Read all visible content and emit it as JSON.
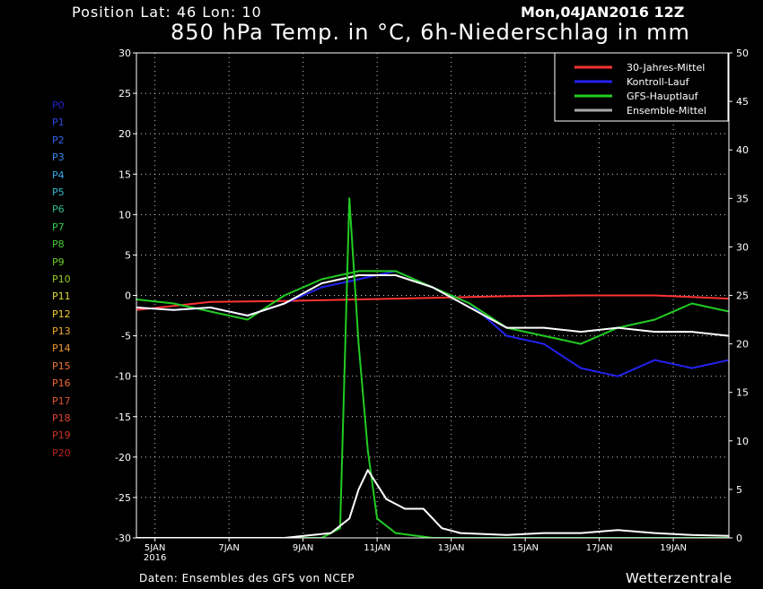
{
  "header": {
    "position": "Position  Lat: 46 Lon: 10",
    "date": "Mon,04JAN2016 12Z",
    "title": "850 hPa Temp. in °C, 6h-Niederschlag in mm"
  },
  "footer": {
    "left": "Daten: Ensembles des GFS von NCEP",
    "right": "Wetterzentrale"
  },
  "members": [
    {
      "label": "P0",
      "color": "#2222cc"
    },
    {
      "label": "P1",
      "color": "#2a44dd"
    },
    {
      "label": "P2",
      "color": "#3366ee"
    },
    {
      "label": "P3",
      "color": "#3388ee"
    },
    {
      "label": "P4",
      "color": "#33aaee"
    },
    {
      "label": "P5",
      "color": "#33bbcc"
    },
    {
      "label": "P6",
      "color": "#33bb88"
    },
    {
      "label": "P7",
      "color": "#33cc55"
    },
    {
      "label": "P8",
      "color": "#44cc33"
    },
    {
      "label": "P9",
      "color": "#66cc22"
    },
    {
      "label": "P10",
      "color": "#99cc22"
    },
    {
      "label": "P11",
      "color": "#dddd33"
    },
    {
      "label": "P12",
      "color": "#eecc33"
    },
    {
      "label": "P13",
      "color": "#eeaa33"
    },
    {
      "label": "P14",
      "color": "#ee9933"
    },
    {
      "label": "P15",
      "color": "#ee7733"
    },
    {
      "label": "P16",
      "color": "#ee6633"
    },
    {
      "label": "P17",
      "color": "#dd5533"
    },
    {
      "label": "P18",
      "color": "#dd4433"
    },
    {
      "label": "P19",
      "color": "#cc3322"
    },
    {
      "label": "P20",
      "color": "#bb2222"
    }
  ],
  "chart_data": {
    "type": "line",
    "x_start": "2016-01-04T12:00",
    "x_end": "2016-01-20T12:00",
    "ylim_left": [
      -30,
      30
    ],
    "ylim_right": [
      0,
      50
    ],
    "left_ticks": [
      "30",
      "25",
      "20",
      "15",
      "10",
      "5",
      "0",
      "-5",
      "-10",
      "-15",
      "-20",
      "-25",
      "-30"
    ],
    "right_ticks": [
      "50",
      "45",
      "40",
      "35",
      "30",
      "25",
      "20",
      "15",
      "10",
      "5",
      "0"
    ],
    "x_ticks": [
      {
        "label": "5JAN",
        "sub": "2016",
        "date": "2016-01-05"
      },
      {
        "label": "7JAN",
        "sub": "",
        "date": "2016-01-07"
      },
      {
        "label": "9JAN",
        "sub": "",
        "date": "2016-01-09"
      },
      {
        "label": "11JAN",
        "sub": "",
        "date": "2016-01-11"
      },
      {
        "label": "13JAN",
        "sub": "",
        "date": "2016-01-13"
      },
      {
        "label": "15JAN",
        "sub": "",
        "date": "2016-01-15"
      },
      {
        "label": "17JAN",
        "sub": "",
        "date": "2016-01-17"
      },
      {
        "label": "19JAN",
        "sub": "",
        "date": "2016-01-19"
      }
    ],
    "grid": true,
    "legend_position": "top-right",
    "legend": [
      {
        "name": "30-Jahres-Mittel",
        "color": "#ff3333"
      },
      {
        "name": "Kontroll-Lauf",
        "color": "#2222ee"
      },
      {
        "name": "GFS-Hauptlauf",
        "color": "#22cc22"
      },
      {
        "name": "Ensemble-Mittel",
        "color": "#aaaaaa"
      }
    ],
    "temperature": {
      "climatology": {
        "color": "#ff3333",
        "x": [
          "2016-01-04T12:00",
          "2016-01-06T12:00",
          "2016-01-08T12:00",
          "2016-01-10T12:00",
          "2016-01-12T12:00",
          "2016-01-14T12:00",
          "2016-01-16T12:00",
          "2016-01-18T12:00",
          "2016-01-20T12:00"
        ],
        "y": [
          -1.8,
          -0.8,
          -0.7,
          -0.5,
          -0.3,
          -0.1,
          0,
          0,
          -0.4
        ]
      },
      "control": {
        "color": "#2222ee",
        "x": [
          "2016-01-04T12:00",
          "2016-01-05T12:00",
          "2016-01-06T12:00",
          "2016-01-07T12:00",
          "2016-01-08T12:00",
          "2016-01-09T12:00",
          "2016-01-10T12:00",
          "2016-01-11T12:00",
          "2016-01-12T12:00",
          "2016-01-13T12:00",
          "2016-01-14T12:00",
          "2016-01-15T12:00",
          "2016-01-16T12:00",
          "2016-01-17T12:00",
          "2016-01-18T12:00",
          "2016-01-19T12:00",
          "2016-01-20T12:00"
        ],
        "y": [
          -1.5,
          -1.8,
          -1.5,
          -2.5,
          -1,
          1,
          2,
          3,
          1,
          -1,
          -5,
          -6,
          -9,
          -10,
          -8,
          -9,
          -8
        ]
      },
      "gfs_main": {
        "color": "#22cc22",
        "x": [
          "2016-01-04T12:00",
          "2016-01-05T12:00",
          "2016-01-06T12:00",
          "2016-01-07T12:00",
          "2016-01-08T12:00",
          "2016-01-09T12:00",
          "2016-01-10T12:00",
          "2016-01-11T12:00",
          "2016-01-12T12:00",
          "2016-01-13T12:00",
          "2016-01-14T12:00",
          "2016-01-15T12:00",
          "2016-01-16T12:00",
          "2016-01-17T12:00",
          "2016-01-18T12:00",
          "2016-01-19T12:00",
          "2016-01-20T12:00"
        ],
        "y": [
          -0.5,
          -1,
          -2,
          -3,
          0,
          2,
          3,
          3,
          1,
          -1,
          -4,
          -5,
          -6,
          -4,
          -3,
          -1,
          -2
        ]
      },
      "ensemble_mean": {
        "color": "#ffffff",
        "x": [
          "2016-01-04T12:00",
          "2016-01-05T12:00",
          "2016-01-06T12:00",
          "2016-01-07T12:00",
          "2016-01-08T12:00",
          "2016-01-09T12:00",
          "2016-01-10T12:00",
          "2016-01-11T12:00",
          "2016-01-12T12:00",
          "2016-01-13T12:00",
          "2016-01-14T12:00",
          "2016-01-15T12:00",
          "2016-01-16T12:00",
          "2016-01-17T12:00",
          "2016-01-18T12:00",
          "2016-01-19T12:00",
          "2016-01-20T12:00"
        ],
        "y": [
          -1.5,
          -1.8,
          -1.5,
          -2.5,
          -1,
          1.5,
          2.5,
          2.5,
          1,
          -1.5,
          -4,
          -4,
          -4.5,
          -4,
          -4.5,
          -4.5,
          -5
        ]
      }
    },
    "precipitation": {
      "ensemble_mean": {
        "color": "#ffffff",
        "x": [
          "2016-01-04T12:00",
          "2016-01-08T12:00",
          "2016-01-09T18:00",
          "2016-01-10T06:00",
          "2016-01-10T12:00",
          "2016-01-10T18:00",
          "2016-01-11T06:00",
          "2016-01-11T18:00",
          "2016-01-12T06:00",
          "2016-01-12T18:00",
          "2016-01-13T06:00",
          "2016-01-14T12:00",
          "2016-01-15T12:00",
          "2016-01-16T12:00",
          "2016-01-17T12:00",
          "2016-01-18T12:00",
          "2016-01-19T12:00",
          "2016-01-20T12:00"
        ],
        "y": [
          0,
          0,
          0.5,
          2,
          5,
          7,
          4,
          3,
          3,
          1,
          0.5,
          0.3,
          0.5,
          0.5,
          0.8,
          0.5,
          0.3,
          0.2
        ]
      },
      "gfs_main": {
        "color": "#22cc22",
        "x": [
          "2016-01-04T12:00",
          "2016-01-09T12:00",
          "2016-01-10T00:00",
          "2016-01-10T06:00",
          "2016-01-10T12:00",
          "2016-01-10T18:00",
          "2016-01-11T00:00",
          "2016-01-11T12:00",
          "2016-01-12T12:00",
          "2016-01-20T12:00"
        ],
        "y": [
          0,
          0,
          1,
          35,
          20,
          9,
          2,
          0.5,
          0,
          0
        ]
      }
    }
  }
}
